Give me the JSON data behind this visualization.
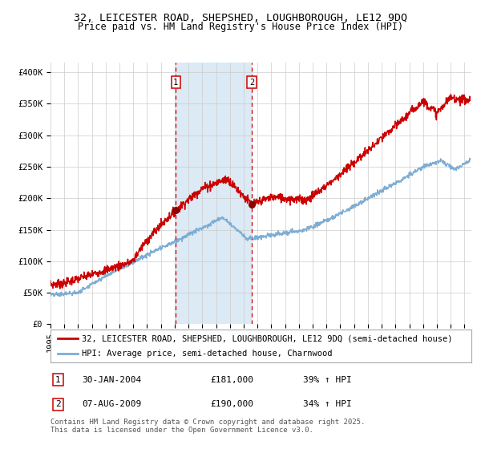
{
  "title": "32, LEICESTER ROAD, SHEPSHED, LOUGHBOROUGH, LE12 9DQ",
  "subtitle": "Price paid vs. HM Land Registry's House Price Index (HPI)",
  "ylabel_ticks": [
    "£0",
    "£50K",
    "£100K",
    "£150K",
    "£200K",
    "£250K",
    "£300K",
    "£350K",
    "£400K"
  ],
  "ytick_vals": [
    0,
    50000,
    100000,
    150000,
    200000,
    250000,
    300000,
    350000,
    400000
  ],
  "ylim": [
    0,
    415000
  ],
  "xlim_start": 1995.0,
  "xlim_end": 2025.5,
  "marker1_x": 2004.08,
  "marker1_y": 181000,
  "marker2_x": 2009.58,
  "marker2_y": 190000,
  "shade_color": "#dbeaf5",
  "vline_color": "#cc0000",
  "red_line_color": "#cc0000",
  "blue_line_color": "#7dadd4",
  "marker_color": "#8b0000",
  "grid_color": "#cccccc",
  "bg_color": "#ffffff",
  "legend_label_red": "32, LEICESTER ROAD, SHEPSHED, LOUGHBOROUGH, LE12 9DQ (semi-detached house)",
  "legend_label_blue": "HPI: Average price, semi-detached house, Charnwood",
  "table_row1": [
    "1",
    "30-JAN-2004",
    "£181,000",
    "39% ↑ HPI"
  ],
  "table_row2": [
    "2",
    "07-AUG-2009",
    "£190,000",
    "34% ↑ HPI"
  ],
  "footnote": "Contains HM Land Registry data © Crown copyright and database right 2025.\nThis data is licensed under the Open Government Licence v3.0.",
  "title_fontsize": 9.5,
  "subtitle_fontsize": 8.5,
  "tick_fontsize": 7.5,
  "legend_fontsize": 7.5,
  "table_fontsize": 8,
  "footnote_fontsize": 6.5
}
